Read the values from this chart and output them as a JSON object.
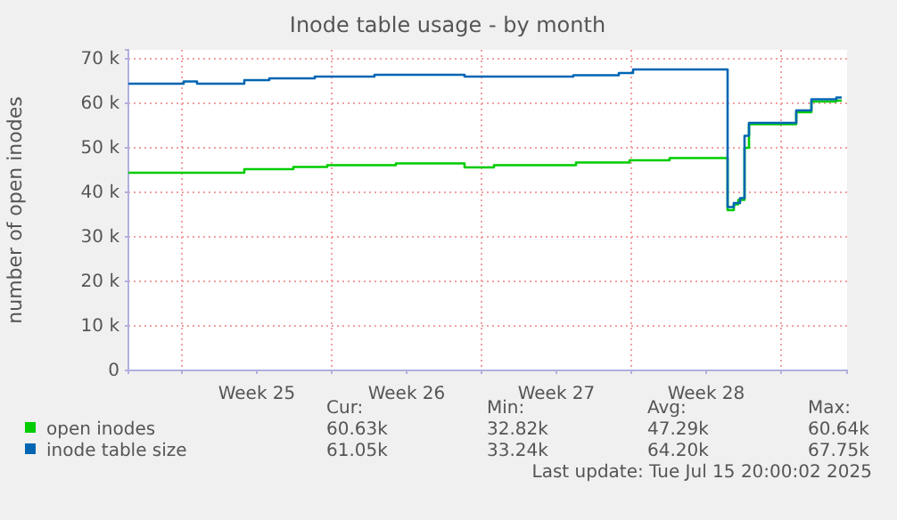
{
  "chart_data": {
    "type": "step",
    "title": "Inode table usage - by month",
    "ylabel": "number of open inodes",
    "xlim": [
      "2025-06-12T12:00",
      "2025-07-16T02:00"
    ],
    "xticks": [
      {
        "value": "2025-06-15",
        "label": null
      },
      {
        "value": "2025-06-18T12:00",
        "label": "Week 25"
      },
      {
        "value": "2025-06-22",
        "label": null
      },
      {
        "value": "2025-06-25T12:00",
        "label": "Week 26"
      },
      {
        "value": "2025-06-29",
        "label": null
      },
      {
        "value": "2025-07-02T12:00",
        "label": "Week 27"
      },
      {
        "value": "2025-07-06",
        "label": null
      },
      {
        "value": "2025-07-09T12:00",
        "label": "Week 28"
      },
      {
        "value": "2025-07-13",
        "label": null
      }
    ],
    "ylim": [
      0,
      72000
    ],
    "yticks": [
      {
        "value": 0,
        "label": "0"
      },
      {
        "value": 10000,
        "label": "10 k"
      },
      {
        "value": 20000,
        "label": "20 k"
      },
      {
        "value": 30000,
        "label": "30 k"
      },
      {
        "value": 40000,
        "label": "40 k"
      },
      {
        "value": 50000,
        "label": "50 k"
      },
      {
        "value": 60000,
        "label": "60 k"
      },
      {
        "value": 70000,
        "label": "70 k"
      }
    ],
    "grid": true,
    "legend": "bottom",
    "series": [
      {
        "name": "open inodes",
        "color": "#00cc00",
        "x": [
          "2025-06-12T12:00",
          "2025-06-17T22:00",
          "2025-06-20T05:00",
          "2025-06-21T19:00",
          "2025-06-25T00:00",
          "2025-06-28T05:00",
          "2025-06-29T14:00",
          "2025-07-03T10:00",
          "2025-07-05T22:00",
          "2025-07-07T19:00",
          "2025-07-10T12:00",
          "2025-07-10T19:00",
          "2025-07-11T00:00",
          "2025-07-11T07:00",
          "2025-07-11T12:00",
          "2025-07-13T17:00",
          "2025-07-14T10:00",
          "2025-07-15T14:00",
          "2025-07-15T20:00"
        ],
        "values": [
          44400,
          45200,
          45700,
          46100,
          46500,
          45600,
          46100,
          46700,
          47200,
          47700,
          36000,
          37300,
          38300,
          50000,
          55300,
          58000,
          60400,
          60600,
          60600
        ]
      },
      {
        "name": "inode table size",
        "color": "#0066b3",
        "x": [
          "2025-06-12T12:00",
          "2025-06-15T02:00",
          "2025-06-15T17:00",
          "2025-06-17T22:00",
          "2025-06-19T02:00",
          "2025-06-21T05:00",
          "2025-06-24T00:00",
          "2025-06-28T05:00",
          "2025-07-03T07:00",
          "2025-07-05T10:00",
          "2025-07-06T02:00",
          "2025-07-10T12:00",
          "2025-07-10T19:00",
          "2025-07-11T02:00",
          "2025-07-11T07:00",
          "2025-07-11T12:00",
          "2025-07-13T17:00",
          "2025-07-14T10:00",
          "2025-07-15T14:00",
          "2025-07-15T20:00"
        ],
        "values": [
          64400,
          64900,
          64400,
          65200,
          65600,
          66000,
          66400,
          66000,
          66300,
          66800,
          67600,
          36700,
          37600,
          38700,
          52700,
          55600,
          58400,
          60900,
          61300,
          61300
        ]
      }
    ],
    "annotations": [
      "Cur:",
      "Min:",
      "Avg:",
      "Max:",
      "60.63k",
      "32.82k",
      "47.29k",
      "60.64k",
      "61.05k",
      "33.24k",
      "64.20k",
      "67.75k",
      "Last update: Tue Jul 15 20:00:02 2025"
    ]
  }
}
